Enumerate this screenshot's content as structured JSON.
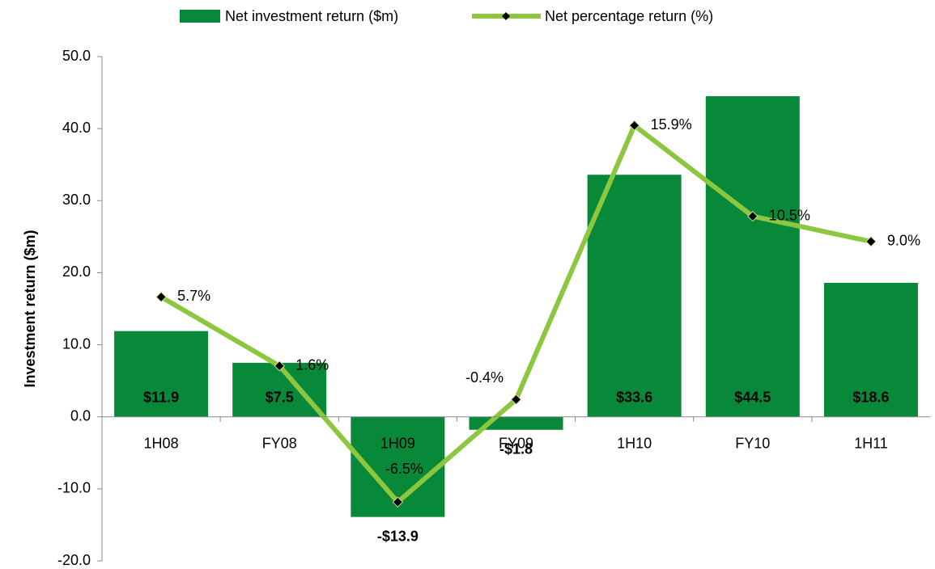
{
  "chart_data": {
    "type": "bar",
    "y_axis_label": "Investment return ($m)",
    "categories": [
      "1H08",
      "FY08",
      "1H09",
      "FY09",
      "1H10",
      "FY10",
      "1H11"
    ],
    "series": [
      {
        "name": "Net investment return ($m)",
        "type": "bar",
        "color": "#08893a",
        "values": [
          11.9,
          7.5,
          -13.9,
          -1.8,
          33.6,
          44.5,
          18.6
        ],
        "value_labels": [
          "$11.9",
          "$7.5",
          "-$13.9",
          "-$1.8",
          "$33.6",
          "$44.5",
          "$18.6"
        ]
      },
      {
        "name": "Net percentage return (%)",
        "type": "line",
        "axis": "y2",
        "color": "#8dc63f",
        "values": [
          5.7,
          1.6,
          -6.5,
          -0.4,
          15.9,
          10.5,
          9.0
        ],
        "value_labels": [
          "5.7%",
          "1.6%",
          "-6.5%",
          "-0.4%",
          "15.9%",
          "10.5%",
          "9.0%"
        ]
      }
    ],
    "ylim": [
      -20,
      50
    ],
    "yticks": [
      {
        "value": -20,
        "label": "-20.0"
      },
      {
        "value": -10,
        "label": "-10.0"
      },
      {
        "value": 0,
        "label": "0.0"
      },
      {
        "value": 10,
        "label": "10.0"
      },
      {
        "value": 20,
        "label": "20.0"
      },
      {
        "value": 30,
        "label": "30.0"
      },
      {
        "value": 40,
        "label": "40.0"
      },
      {
        "value": 50,
        "label": "50.0"
      }
    ],
    "y2lim": [
      -10,
      20
    ],
    "legend": "top"
  }
}
